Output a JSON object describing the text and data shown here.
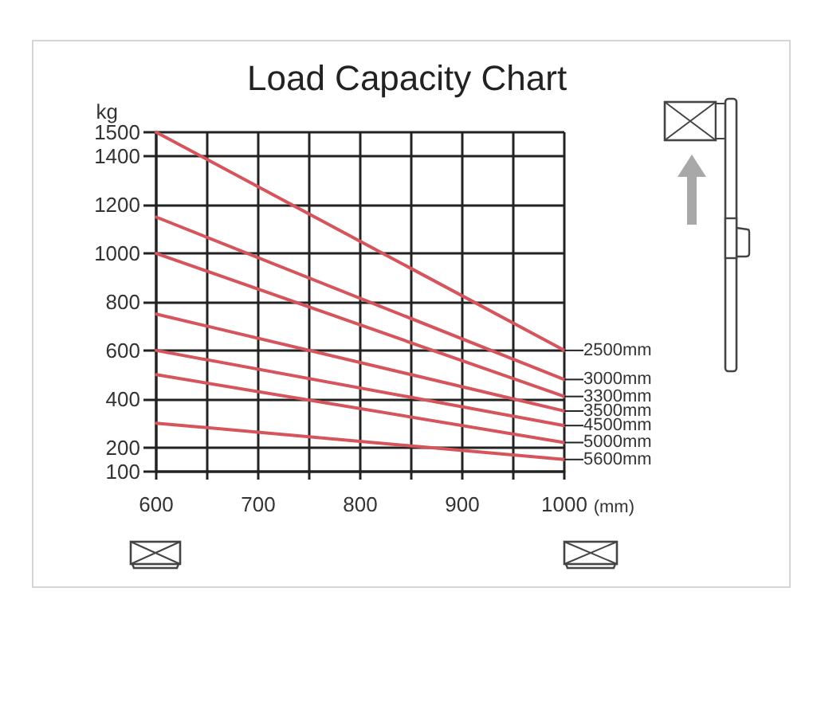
{
  "chart_data": {
    "type": "line",
    "title": "Load Capacity Chart",
    "xlabel": "(mm)",
    "ylabel": "kg",
    "x": [
      600,
      1000
    ],
    "series": [
      {
        "name": "2500mm",
        "color": "#d6545c",
        "values": [
          1500,
          600
        ]
      },
      {
        "name": "3000mm",
        "color": "#d6545c",
        "values": [
          1150,
          480
        ]
      },
      {
        "name": "3300mm",
        "color": "#d6545c",
        "values": [
          1000,
          410
        ]
      },
      {
        "name": "3500mm",
        "color": "#d6545c",
        "values": [
          750,
          350
        ]
      },
      {
        "name": "4500mm",
        "color": "#d6545c",
        "values": [
          600,
          290
        ]
      },
      {
        "name": "5000mm",
        "color": "#d6545c",
        "values": [
          500,
          220
        ]
      },
      {
        "name": "5600mm",
        "color": "#d6545c",
        "values": [
          300,
          150
        ]
      }
    ],
    "xlim": [
      600,
      1000
    ],
    "xticks": [
      600,
      {
        "value": 650,
        "label": null
      },
      700,
      {
        "value": 750,
        "label": null
      },
      800,
      {
        "value": 850,
        "label": null
      },
      900,
      {
        "value": 950,
        "label": null
      },
      1000
    ],
    "ylim": [
      100,
      1500
    ],
    "yticks": [
      100,
      200,
      400,
      600,
      800,
      1000,
      1200,
      1400,
      1500
    ],
    "grid": true,
    "legend": false,
    "marker": "none",
    "line_style": "solid"
  }
}
